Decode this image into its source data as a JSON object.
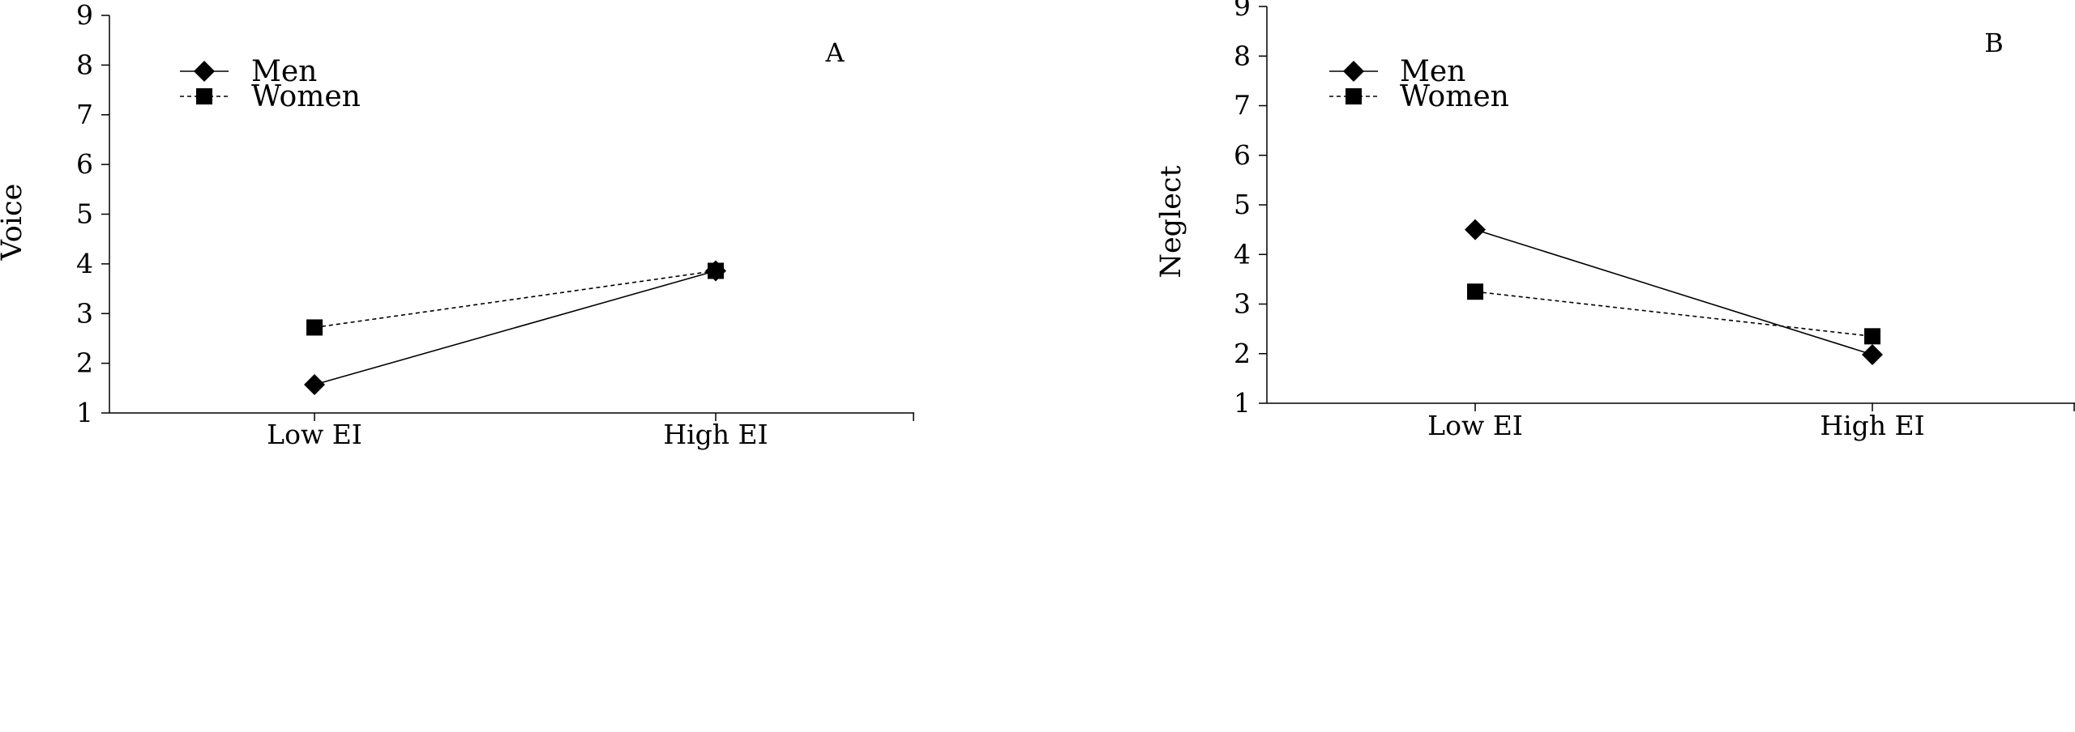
{
  "chart_data": [
    {
      "type": "line",
      "panel": "A",
      "ylabel": "Voice",
      "xlabel": "",
      "categories": [
        "Low EI",
        "High EI"
      ],
      "ylim": [
        1,
        9
      ],
      "yticks": [
        "1",
        "2",
        "3",
        "4",
        "5",
        "6",
        "7",
        "8",
        "9"
      ],
      "grid": false,
      "legend_position": "top-left",
      "series": [
        {
          "name": "Men",
          "values": [
            1.57,
            3.86
          ],
          "marker": "diamond",
          "line": "solid"
        },
        {
          "name": "Women",
          "values": [
            2.72,
            3.86
          ],
          "marker": "square",
          "line": "dashed"
        }
      ]
    },
    {
      "type": "line",
      "panel": "B",
      "ylabel": "Neglect",
      "xlabel": "",
      "categories": [
        "Low EI",
        "High EI"
      ],
      "ylim": [
        1,
        9
      ],
      "yticks": [
        "1",
        "2",
        "3",
        "4",
        "5",
        "6",
        "7",
        "8",
        "9"
      ],
      "grid": false,
      "legend_position": "top-left",
      "series": [
        {
          "name": "Men",
          "values": [
            4.5,
            1.98
          ],
          "marker": "diamond",
          "line": "solid"
        },
        {
          "name": "Women",
          "values": [
            3.25,
            2.35
          ],
          "marker": "square",
          "line": "dashed"
        }
      ]
    }
  ],
  "colors": {
    "ink": "#000000",
    "background": "#ffffff"
  }
}
